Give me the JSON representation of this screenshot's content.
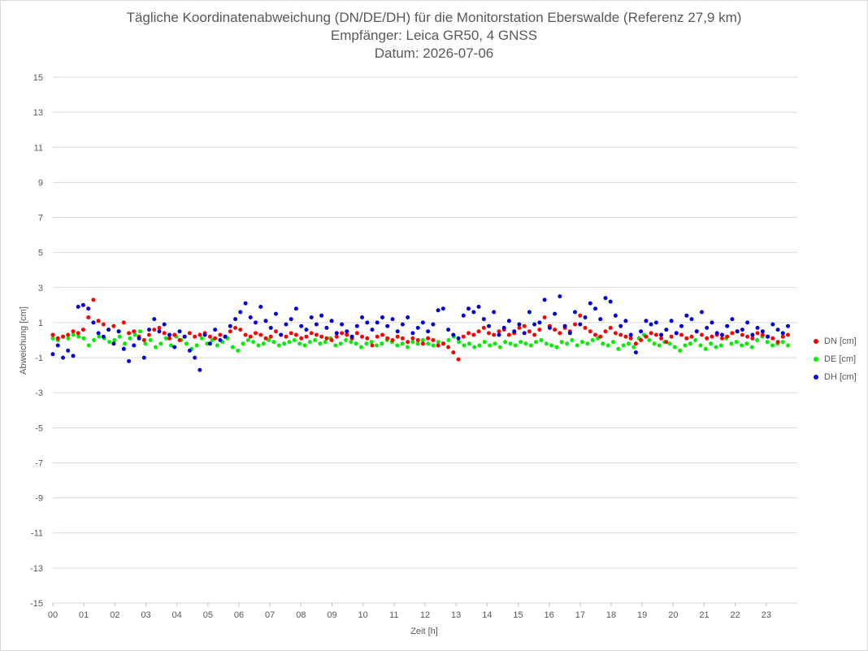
{
  "title_lines": [
    "Tägliche Koordinatenabweichung (DN/DE/DH) für die Monitorstation Eberswalde (Referenz 27,9 km)",
    "Empfänger: Leica GR50, 4 GNSS",
    "Datum: 2026-07-06"
  ],
  "chart_data": {
    "type": "scatter",
    "title": "Tägliche Koordinatenabweichung (DN/DE/DH) für die Monitorstation Eberswalde (Referenz 27,9 km)",
    "subtitle": [
      "Empfänger: Leica GR50, 4 GNSS",
      "Datum: 2026-07-06"
    ],
    "xlabel": "Zeit [h]",
    "ylabel": "Abweichung [cm]",
    "xlim": [
      0,
      24
    ],
    "ylim": [
      -15,
      15
    ],
    "x_ticks": [
      "00",
      "01",
      "02",
      "03",
      "04",
      "05",
      "06",
      "07",
      "08",
      "09",
      "10",
      "11",
      "12",
      "13",
      "14",
      "15",
      "16",
      "17",
      "18",
      "19",
      "20",
      "21",
      "22",
      "23"
    ],
    "y_ticks": [
      15,
      13,
      11,
      9,
      7,
      5,
      3,
      1,
      -1,
      -3,
      -5,
      -7,
      -9,
      -11,
      -13,
      -15
    ],
    "grid": true,
    "legend_position": "right",
    "sample_interval_h": 0.0333,
    "series": [
      {
        "name": "DN [cm]",
        "color": "#ff0000",
        "values": [
          0.3,
          0.1,
          0.2,
          0.3,
          0.5,
          0.4,
          0.6,
          1.3,
          2.3,
          1.1,
          0.9,
          0.6,
          0.8,
          0.5,
          1.0,
          0.4,
          0.5,
          0.2,
          0.0,
          0.3,
          0.6,
          0.7,
          0.4,
          0.1,
          0.3,
          0.0,
          0.2,
          0.4,
          0.2,
          0.3,
          0.4,
          0.2,
          0.1,
          0.3,
          0.2,
          0.5,
          0.7,
          0.6,
          0.3,
          0.2,
          0.4,
          0.3,
          0.1,
          0.2,
          0.5,
          0.3,
          0.2,
          0.4,
          0.3,
          0.1,
          0.2,
          0.4,
          0.3,
          0.2,
          0.1,
          0.0,
          0.2,
          0.4,
          0.3,
          0.1,
          0.4,
          0.2,
          0.1,
          -0.3,
          0.2,
          0.3,
          0.1,
          0.0,
          0.2,
          0.1,
          -0.1,
          0.1,
          0.0,
          -0.2,
          0.1,
          0.0,
          -0.3,
          -0.2,
          -0.4,
          -0.7,
          -1.1,
          0.2,
          0.4,
          0.3,
          0.5,
          0.7,
          0.4,
          0.3,
          0.5,
          0.6,
          0.3,
          0.4,
          0.7,
          0.8,
          0.5,
          0.3,
          0.6,
          1.3,
          0.8,
          0.6,
          0.4,
          0.7,
          0.5,
          0.9,
          1.4,
          0.7,
          0.5,
          0.3,
          0.2,
          0.5,
          0.7,
          0.4,
          0.3,
          0.2,
          0.1,
          -0.2,
          0.0,
          0.2,
          0.4,
          0.3,
          0.1,
          -0.1,
          0.2,
          0.4,
          0.3,
          0.1,
          0.2,
          0.5,
          0.3,
          0.1,
          0.2,
          0.3,
          0.1,
          0.2,
          0.4,
          0.5,
          0.3,
          0.2,
          0.1,
          0.4,
          0.3,
          0.2,
          0.1,
          -0.1,
          0.2,
          0.3
        ]
      },
      {
        "name": "DE [cm]",
        "color": "#00ee00",
        "values": [
          0.1,
          0.0,
          0.2,
          0.1,
          0.3,
          0.2,
          0.1,
          -0.3,
          0.0,
          0.2,
          0.1,
          -0.1,
          0.0,
          0.2,
          -0.2,
          0.1,
          0.3,
          0.5,
          -0.2,
          0.0,
          -0.4,
          -0.2,
          0.1,
          -0.3,
          0.2,
          0.0,
          -0.2,
          -0.5,
          -0.3,
          0.1,
          -0.2,
          0.0,
          -0.3,
          -0.1,
          0.1,
          -0.4,
          -0.6,
          -0.2,
          0.0,
          -0.1,
          -0.3,
          -0.2,
          0.0,
          -0.1,
          -0.3,
          -0.2,
          -0.1,
          0.0,
          -0.2,
          -0.3,
          -0.1,
          0.0,
          -0.2,
          -0.1,
          0.1,
          -0.3,
          -0.2,
          0.0,
          -0.1,
          -0.2,
          -0.4,
          -0.2,
          -0.1,
          -0.3,
          -0.2,
          0.0,
          -0.1,
          -0.3,
          -0.2,
          -0.4,
          -0.1,
          -0.2,
          0.0,
          -0.2,
          -0.3,
          -0.1,
          -0.2,
          0.0,
          0.2,
          -0.1,
          -0.3,
          -0.2,
          -0.4,
          -0.3,
          -0.1,
          -0.3,
          -0.2,
          -0.4,
          -0.1,
          -0.2,
          -0.3,
          -0.1,
          -0.2,
          -0.3,
          -0.1,
          0.0,
          -0.2,
          -0.3,
          -0.4,
          -0.1,
          -0.2,
          0.0,
          -0.3,
          -0.1,
          -0.2,
          0.0,
          0.1,
          -0.2,
          -0.3,
          -0.1,
          -0.5,
          -0.3,
          -0.2,
          -0.4,
          0.1,
          0.3,
          0.0,
          -0.2,
          -0.3,
          -0.1,
          -0.2,
          -0.4,
          -0.6,
          -0.3,
          -0.2,
          0.0,
          -0.3,
          -0.5,
          -0.2,
          -0.4,
          -0.3,
          0.1,
          -0.2,
          -0.1,
          -0.3,
          -0.2,
          -0.4,
          0.0,
          0.2,
          -0.1,
          -0.3,
          -0.2,
          -0.1,
          -0.3
        ]
      },
      {
        "name": "DH [cm]",
        "color": "#0000dd",
        "values": [
          -0.8,
          -0.3,
          -1.0,
          -0.6,
          -0.9,
          1.9,
          2.0,
          1.8,
          1.0,
          0.4,
          0.2,
          0.6,
          -0.2,
          0.5,
          -0.5,
          -1.2,
          -0.3,
          0.1,
          -1.0,
          0.6,
          1.2,
          0.5,
          0.9,
          0.3,
          -0.4,
          0.5,
          0.2,
          -0.6,
          -1.0,
          -1.7,
          0.3,
          -0.2,
          0.6,
          0.0,
          0.2,
          0.8,
          1.2,
          1.6,
          2.1,
          1.3,
          1.0,
          1.9,
          1.1,
          0.7,
          1.5,
          0.3,
          0.9,
          1.2,
          1.8,
          0.8,
          0.6,
          1.3,
          0.9,
          1.4,
          0.7,
          1.1,
          0.4,
          0.9,
          0.5,
          0.2,
          0.8,
          1.3,
          1.0,
          0.6,
          1.0,
          1.3,
          0.8,
          1.2,
          0.5,
          0.9,
          1.3,
          0.4,
          0.7,
          1.0,
          0.5,
          0.9,
          1.7,
          1.8,
          0.6,
          0.3,
          0.1,
          1.4,
          1.8,
          1.6,
          1.9,
          1.2,
          0.8,
          1.6,
          0.3,
          0.7,
          1.1,
          0.5,
          0.9,
          0.4,
          1.6,
          0.9,
          1.0,
          2.3,
          0.7,
          1.5,
          2.5,
          0.8,
          0.4,
          1.6,
          0.9,
          1.3,
          2.1,
          1.8,
          1.2,
          2.4,
          2.2,
          1.4,
          0.8,
          1.1,
          0.3,
          -0.7,
          0.5,
          1.1,
          0.9,
          1.0,
          0.3,
          0.6,
          1.1,
          0.4,
          0.8,
          1.4,
          1.2,
          0.5,
          1.6,
          0.7,
          1.0,
          0.4,
          0.3,
          0.8,
          1.2,
          0.5,
          0.6,
          1.0,
          0.3,
          0.7,
          0.5,
          0.2,
          0.9,
          0.6,
          0.4,
          0.8
        ]
      }
    ]
  }
}
